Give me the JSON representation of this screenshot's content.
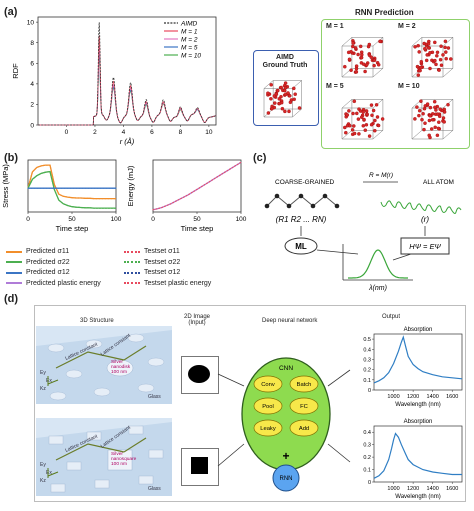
{
  "panel_labels": {
    "a": "(a)",
    "b": "(b)",
    "c": "(c)",
    "d": "(d)"
  },
  "panel_a": {
    "chart_data": {
      "type": "line",
      "xlabel": "r (Å)",
      "ylabel": "RDF",
      "xlim": [
        -2,
        10.5
      ],
      "ylim": [
        0,
        10.5
      ],
      "xticks": [
        "0",
        "2",
        "4",
        "6",
        "8",
        "10"
      ],
      "yticks": [
        "0",
        "2",
        "4",
        "6",
        "8",
        "10"
      ],
      "legend_position": "top-right",
      "series": [
        {
          "name": "AIMD",
          "color": "#333333",
          "dashed": true,
          "peaks": [
            [
              2.3,
              9.9
            ],
            [
              3.3,
              4.7
            ],
            [
              4.5,
              4.0
            ],
            [
              5.6,
              2.6
            ],
            [
              6.8,
              2.3
            ],
            [
              8.0,
              1.9
            ],
            [
              9.2,
              1.6
            ]
          ]
        },
        {
          "name": "M = 1",
          "color": "#e84a5f",
          "dashed": false,
          "peaks": [
            [
              2.3,
              8.6
            ],
            [
              3.3,
              4.3
            ],
            [
              4.5,
              3.7
            ],
            [
              5.6,
              2.4
            ],
            [
              6.8,
              2.1
            ],
            [
              8.0,
              1.8
            ],
            [
              9.2,
              1.5
            ]
          ]
        },
        {
          "name": "M = 2",
          "color": "#e377c2",
          "dashed": false,
          "peaks": [
            [
              2.3,
              7.6
            ],
            [
              3.3,
              4.0
            ],
            [
              4.5,
              3.5
            ],
            [
              5.6,
              2.3
            ],
            [
              6.8,
              2.0
            ],
            [
              8.0,
              1.7
            ],
            [
              9.2,
              1.5
            ]
          ]
        },
        {
          "name": "M = 5",
          "color": "#3b75c4",
          "dashed": false,
          "peaks": [
            [
              2.3,
              7.0
            ],
            [
              3.3,
              3.8
            ],
            [
              4.5,
              3.3
            ],
            [
              5.6,
              2.2
            ],
            [
              6.8,
              2.0
            ],
            [
              8.0,
              1.7
            ],
            [
              9.2,
              1.4
            ]
          ]
        },
        {
          "name": "M = 10",
          "color": "#4caf50",
          "dashed": false,
          "peaks": [
            [
              2.3,
              6.6
            ],
            [
              3.3,
              3.7
            ],
            [
              4.5,
              3.2
            ],
            [
              5.6,
              2.1
            ],
            [
              6.8,
              1.9
            ],
            [
              8.0,
              1.6
            ],
            [
              9.2,
              1.4
            ]
          ]
        }
      ]
    },
    "aimd_box_title": "AIMD\nGround Truth",
    "rnn_box_title": "RNN Prediction",
    "rnn_labels": [
      "M = 1",
      "M = 2",
      "M = 5",
      "M = 10"
    ]
  },
  "panel_b": {
    "stress_chart": {
      "type": "line",
      "xlabel": "Time step",
      "ylabel": "Stress (MPa)",
      "xticks": [
        "0",
        "50",
        "100"
      ],
      "xlim": [
        0,
        100
      ],
      "series": [
        {
          "name": "Predicted σ11",
          "color": "#f28e2b",
          "y": [
            0,
            55,
            70,
            75,
            78,
            78,
            12,
            -20,
            -27,
            -30,
            -32,
            -33,
            -33,
            -34,
            -34,
            -35,
            -35,
            -35,
            -35,
            -35,
            -35
          ]
        },
        {
          "name": "Predicted σ22",
          "color": "#4caf50",
          "y": [
            0,
            30,
            42,
            50,
            54,
            56,
            -5,
            -40,
            -52,
            -58,
            -62,
            -64,
            -65,
            -66,
            -66,
            -67,
            -67,
            -67,
            -67,
            -67,
            -67
          ]
        },
        {
          "name": "Predicted σ12",
          "color": "#3b75c4",
          "y": [
            0,
            0,
            0,
            0,
            0,
            0,
            0,
            0,
            0,
            0,
            0,
            0,
            0,
            0,
            0,
            0,
            0,
            0,
            0,
            0,
            0
          ]
        }
      ]
    },
    "energy_chart": {
      "type": "line",
      "xlabel": "Time step",
      "ylabel": "Energy (mJ)",
      "xticks": [
        "0",
        "50",
        "100"
      ],
      "xlim": [
        0,
        100
      ],
      "series": [
        {
          "name": "Predicted plastic energy",
          "color": "#b07cd8",
          "y": [
            0,
            2,
            5,
            9,
            13,
            18,
            23,
            28,
            33,
            39,
            45,
            51,
            57,
            63,
            69,
            75,
            81,
            87,
            93,
            99,
            105
          ]
        }
      ]
    },
    "legend": [
      {
        "label": "Predicted σ11",
        "color": "#f28e2b",
        "style": "solid"
      },
      {
        "label": "Testset σ11",
        "color": "#e84a5f",
        "style": "dotted"
      },
      {
        "label": "Predicted σ22",
        "color": "#4caf50",
        "style": "solid"
      },
      {
        "label": "Testset σ22",
        "color": "#4caf50",
        "style": "dotted"
      },
      {
        "label": "Predicted σ12",
        "color": "#3b75c4",
        "style": "solid"
      },
      {
        "label": "Testset σ12",
        "color": "#2f4f9f",
        "style": "dotted"
      },
      {
        "label": "Predicted plastic energy",
        "color": "#b07cd8",
        "style": "solid"
      },
      {
        "label": "Testset plastic energy",
        "color": "#e84a5f",
        "style": "dotted"
      }
    ]
  },
  "panel_c": {
    "coarse_label": "COARSE-GRAINED",
    "all_atom_label": "ALL ATOM",
    "R_formula": "R = M(r)",
    "R_vector": "(R1  R2  ...  RN)",
    "r_vector": "(r)",
    "ml_label": "ML",
    "schrodinger": "HΨ = EΨ",
    "lambda_label": "λ(nm)"
  },
  "panel_d": {
    "col_3d": "3D Structure",
    "col_2d": "2D Image\n(Input)",
    "col_dnn": "Deep neural network",
    "col_out": "Output",
    "cnn_label": "CNN",
    "cnn_nodes": [
      "Conv",
      "Batch",
      "Pool",
      "FC",
      "Leaky",
      "Add"
    ],
    "rnn_label": "RNN",
    "plus": "+",
    "scene_labels": [
      "Lattice constant\n500 nm",
      "Lattice constant\n500 nm",
      "Silver\nnanodisk\n100 nm",
      "Glass",
      "Ey",
      "Ex",
      "Kz"
    ],
    "scene2_labels": [
      "Lattice constant\n500 nm",
      "Lattice constant\n500 nm",
      "Silver\nnanosquare\n100 nm",
      "Glass",
      "Ey",
      "Ex",
      "Kz"
    ],
    "abs_chart_top": {
      "type": "line",
      "title": "Absorption",
      "xlabel": "Wavelength (nm)",
      "xlim": [
        800,
        1700
      ],
      "ylim": [
        0,
        0.55
      ],
      "xticks": [
        "1000",
        "1200",
        "1400",
        "1600"
      ],
      "yticks": [
        "0",
        "0.1",
        "0.2",
        "0.3",
        "0.4",
        "0.5"
      ],
      "x": [
        800,
        850,
        900,
        950,
        1000,
        1050,
        1080,
        1100,
        1120,
        1150,
        1200,
        1250,
        1300,
        1400,
        1500,
        1600,
        1700
      ],
      "y": [
        0.07,
        0.09,
        0.12,
        0.17,
        0.26,
        0.38,
        0.47,
        0.52,
        0.44,
        0.33,
        0.25,
        0.21,
        0.18,
        0.15,
        0.13,
        0.12,
        0.11
      ]
    },
    "abs_chart_bottom": {
      "type": "line",
      "title": "Absorption",
      "xlabel": "Wavelength (nm)",
      "xlim": [
        800,
        1700
      ],
      "ylim": [
        0,
        0.45
      ],
      "xticks": [
        "1000",
        "1200",
        "1400",
        "1600"
      ],
      "yticks": [
        "0",
        "0.1",
        "0.2",
        "0.3",
        "0.4"
      ],
      "x": [
        800,
        850,
        900,
        950,
        980,
        1000,
        1020,
        1050,
        1080,
        1120,
        1150,
        1200,
        1300,
        1400,
        1500,
        1600,
        1700
      ],
      "y": [
        0.03,
        0.05,
        0.09,
        0.18,
        0.27,
        0.34,
        0.39,
        0.36,
        0.3,
        0.23,
        0.18,
        0.14,
        0.1,
        0.08,
        0.07,
        0.06,
        0.06
      ]
    }
  }
}
